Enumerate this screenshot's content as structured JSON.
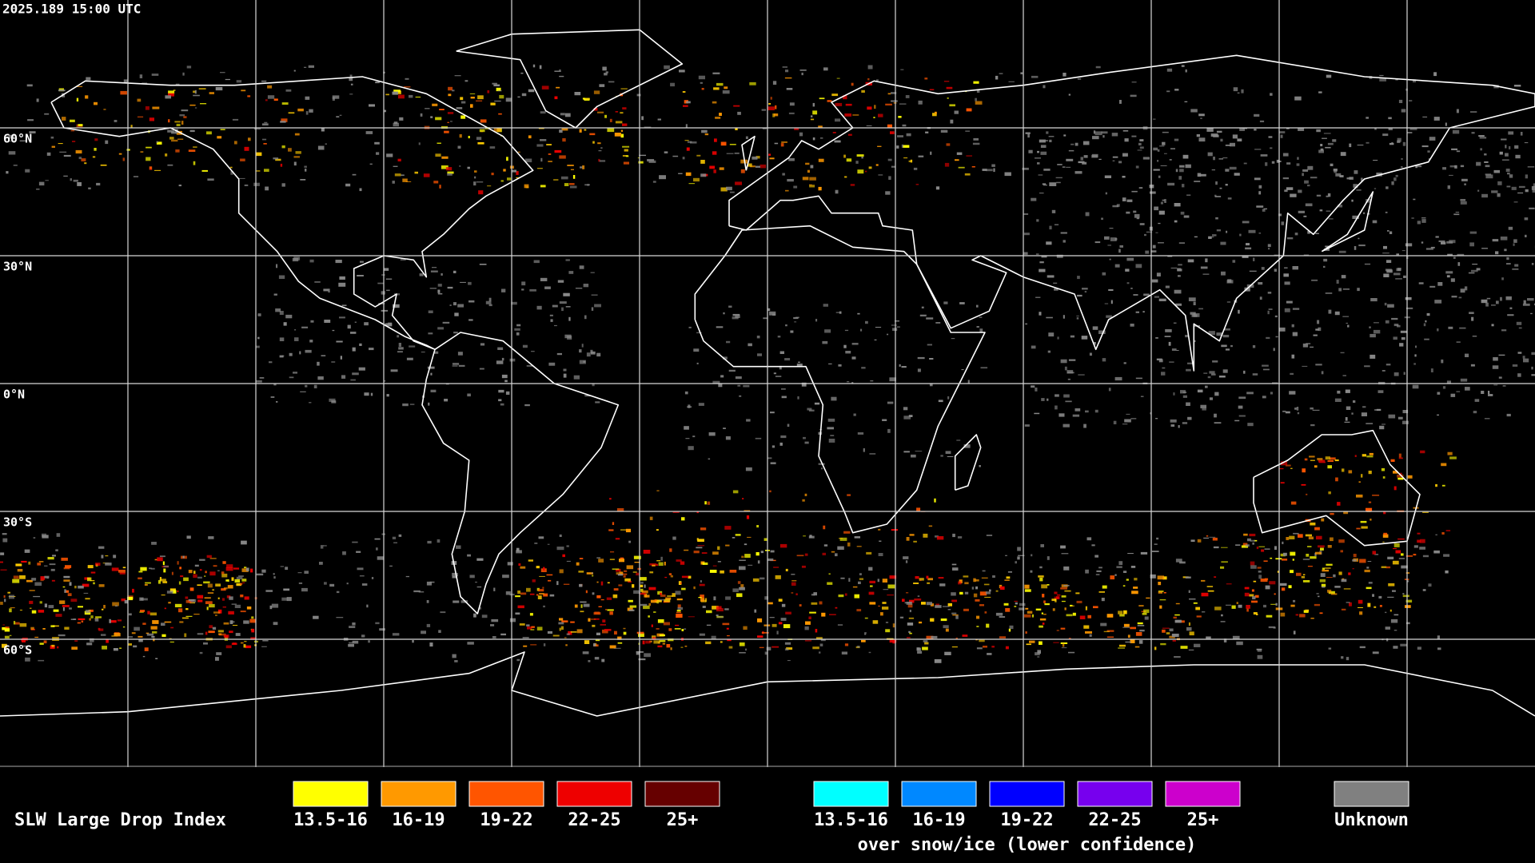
{
  "header": {
    "timestamp": "2025.189 15:00 UTC"
  },
  "map": {
    "lat_labels": [
      "60°N",
      "30°N",
      "0°N",
      "30°S",
      "60°S"
    ]
  },
  "legend": {
    "title": "SLW Large Drop Index",
    "groups": [
      {
        "items": [
          {
            "label": "13.5-16",
            "color": "#ffff00"
          },
          {
            "label": "16-19",
            "color": "#ff9900"
          },
          {
            "label": "19-22",
            "color": "#ff5500"
          },
          {
            "label": "22-25",
            "color": "#ee0000"
          },
          {
            "label": "25+",
            "color": "#660000"
          }
        ]
      },
      {
        "caption": "over snow/ice (lower confidence)",
        "items": [
          {
            "label": "13.5-16",
            "color": "#00ffff"
          },
          {
            "label": "16-19",
            "color": "#0088ff"
          },
          {
            "label": "19-22",
            "color": "#0000ff"
          },
          {
            "label": "22-25",
            "color": "#7700ee"
          },
          {
            "label": "25+",
            "color": "#cc00cc"
          }
        ]
      },
      {
        "items": [
          {
            "label": "Unknown",
            "color": "#808080"
          }
        ]
      }
    ]
  }
}
